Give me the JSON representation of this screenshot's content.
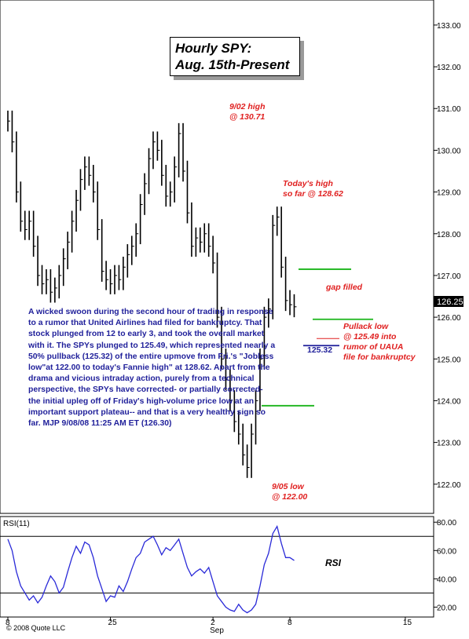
{
  "chart_data": [
    {
      "type": "line",
      "title": "Hourly SPY:",
      "subtitle": "Aug. 15th-Present",
      "ylim": [
        121.3,
        133.6
      ],
      "y_ticks": [
        "122.00",
        "123.00",
        "124.00",
        "125.00",
        "126.00",
        "127.00",
        "128.00",
        "129.00",
        "130.00",
        "131.00",
        "132.00",
        "133.00"
      ],
      "last_price": "126.25",
      "grid": false,
      "series": [
        {
          "x": [
            0,
            2,
            4,
            6,
            8,
            10,
            12,
            14,
            16,
            18,
            20,
            22,
            24,
            26,
            28,
            30,
            32,
            34,
            36,
            38,
            40,
            42,
            44,
            46,
            48,
            50,
            52,
            54,
            56,
            58,
            60,
            62,
            64,
            66,
            68,
            70,
            72,
            74,
            76,
            78,
            80,
            82,
            84,
            86,
            88,
            90,
            92,
            94,
            96,
            98,
            100,
            102,
            104,
            106,
            108,
            110,
            112,
            114,
            116,
            118,
            120,
            122,
            124,
            126,
            128,
            130,
            132,
            134,
            136,
            138,
            140,
            142,
            144,
            146,
            148,
            150,
            152,
            154,
            156,
            158,
            160,
            162,
            164
          ],
          "values": [
            130.7,
            130.2,
            129.0,
            128.3,
            128.1,
            128.3,
            127.7,
            127.0,
            126.8,
            126.9,
            126.6,
            126.7,
            127.0,
            127.4,
            127.8,
            128.3,
            128.8,
            129.3,
            129.6,
            129.4,
            129.0,
            128.1,
            127.1,
            126.9,
            126.8,
            127.0,
            126.9,
            127.2,
            127.5,
            127.7,
            128.0,
            128.7,
            129.2,
            129.8,
            130.2,
            130.0,
            129.4,
            128.9,
            129.0,
            129.6,
            130.4,
            129.5,
            128.5,
            127.7,
            127.9,
            127.8,
            128.0,
            127.7,
            127.3,
            126.0,
            125.0,
            124.5,
            124.0,
            123.5,
            123.2,
            122.7,
            122.4,
            123.2,
            124.0,
            125.0,
            126.0,
            126.2,
            128.2,
            128.4,
            127.2,
            126.4,
            126.3,
            126.25,
            126.25,
            126.25,
            126.25,
            126.25,
            126.25,
            126.25,
            126.25,
            126.25,
            126.25,
            126.25,
            126.25,
            126.25,
            126.25,
            126.25,
            126.25
          ]
        }
      ],
      "levels": [
        {
          "name": "gap-top",
          "y": 127.15,
          "color": "#19b419"
        },
        {
          "name": "gap-bottom",
          "y": 125.95,
          "color": "#19b419"
        },
        {
          "name": "support",
          "y": 123.88,
          "color": "#19b419"
        },
        {
          "name": "pullback-low",
          "y": 125.32,
          "color": "#1f1f9a"
        },
        {
          "name": "rumor-low",
          "y": 125.49,
          "color": "#e02020"
        }
      ],
      "annotations": {
        "high_0902": [
          "9/02 high",
          "@ 130.71"
        ],
        "todays_high": [
          "Today's high",
          "so far @ 128.62"
        ],
        "gap_filled": "gap filled",
        "pullback_low": [
          "Pullack low",
          "@ 125.49 into",
          "rumor of UAUA",
          "file for bankruptcy"
        ],
        "low_value": "125.32",
        "low_0905": [
          "9/05 low",
          "@ 122.00"
        ]
      },
      "commentary": "A wicked swoon during the second hour of trading in response to a rumor that United Airlines had filed for bankruptcy. That stock plunged from 12 to early 3, and took the overall market with it. The SPYs plunged to 125.49, which represented nearly a 50% pullback (125.32) of the entire upmove from Fri.'s \"Jobless low\"at 122.00 to today's Fannie high\" at 128.62. Apart from the drama and vicious intraday action, purely from a technical perspective, the SPYs have corrected- or partially corrected- the initial upleg off of Friday's high-volume price low at an important support plateau-- and that is a very healthy sign so far.   MJP  9/08/08  11:25 AM ET  (126.30)"
    },
    {
      "type": "line",
      "title": "RSI(11)",
      "ylim": [
        13,
        84
      ],
      "y_ticks": [
        "20.00",
        "40.00",
        "60.00",
        "80.00"
      ],
      "reference_levels": [
        70,
        30
      ],
      "series": [
        {
          "name": "RSI",
          "x": [
            0,
            2,
            4,
            6,
            8,
            10,
            12,
            14,
            16,
            18,
            20,
            22,
            24,
            26,
            28,
            30,
            32,
            34,
            36,
            38,
            40,
            42,
            44,
            46,
            48,
            50,
            52,
            54,
            56,
            58,
            60,
            62,
            64,
            66,
            68,
            70,
            72,
            74,
            76,
            78,
            80,
            82,
            84,
            86,
            88,
            90,
            92,
            94,
            96,
            98,
            100,
            102,
            104,
            106,
            108,
            110,
            112,
            114,
            116,
            118,
            120,
            122,
            124,
            126,
            128,
            130,
            132,
            134
          ],
          "values": [
            68,
            60,
            45,
            35,
            30,
            25,
            28,
            23,
            27,
            35,
            42,
            38,
            30,
            34,
            45,
            55,
            63,
            58,
            66,
            64,
            55,
            42,
            33,
            24,
            28,
            27,
            35,
            31,
            38,
            47,
            55,
            58,
            66,
            68,
            70,
            64,
            57,
            62,
            60,
            64,
            68,
            58,
            48,
            42,
            45,
            47,
            44,
            48,
            38,
            28,
            24,
            20,
            18,
            17,
            22,
            18,
            16,
            18,
            22,
            35,
            50,
            58,
            72,
            77,
            65,
            55,
            55,
            53
          ]
        }
      ]
    }
  ],
  "x_axis_labels": [
    {
      "label": "8",
      "x": 0
    },
    {
      "label": "25",
      "x": 48
    },
    {
      "label": "2",
      "x": 96
    },
    {
      "label": "8",
      "x": 132
    },
    {
      "label": "15",
      "x": 186
    }
  ],
  "x_axis_month": "Sep",
  "copyright": "© 2008 Quote LLC",
  "colors": {
    "price": "#000000",
    "rsi": "#2a2ad8",
    "annotation": "#e02020",
    "commentary": "#1f1f9a",
    "level": "#19b419"
  }
}
